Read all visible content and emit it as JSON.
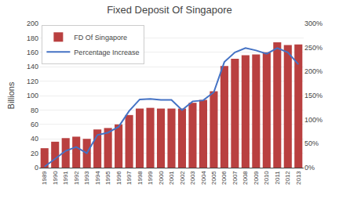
{
  "chart_data": {
    "type": "bar",
    "title": "Fixed Deposit Of Singapore",
    "ylabel": "Billions",
    "x": [
      1989,
      1990,
      1991,
      1992,
      1993,
      1994,
      1995,
      1996,
      1997,
      1998,
      1999,
      2000,
      2001,
      2002,
      2003,
      2004,
      2005,
      2006,
      2007,
      2008,
      2009,
      2010,
      2011,
      2012,
      2013
    ],
    "xlim": [
      1988.5,
      2013.5
    ],
    "xticks": [
      1989,
      1990,
      1991,
      1992,
      1993,
      1994,
      1995,
      1996,
      1997,
      1998,
      1999,
      2000,
      2001,
      2002,
      2003,
      2004,
      2005,
      2006,
      2007,
      2008,
      2009,
      2010,
      2011,
      2012,
      2013
    ],
    "series": [
      {
        "name": "FD Of Singapore",
        "type": "bar",
        "color": "#b94040",
        "values": [
          27,
          36,
          41,
          43,
          40,
          53,
          55,
          60,
          73,
          82,
          83,
          82,
          82,
          82,
          90,
          94,
          106,
          141,
          151,
          156,
          157,
          160,
          174,
          170,
          171
        ]
      },
      {
        "name": "Percentage Increase",
        "type": "line",
        "axis": "y2",
        "color": "#4472c4",
        "values": [
          2,
          18,
          35,
          43,
          30,
          68,
          73,
          85,
          118,
          142,
          143,
          141,
          141,
          120,
          138,
          140,
          157,
          220,
          240,
          249,
          244,
          237,
          249,
          240,
          215
        ]
      }
    ],
    "ylim": [
      0,
      200
    ],
    "yticks": [
      0,
      20,
      40,
      60,
      80,
      100,
      120,
      140,
      160,
      180,
      200
    ],
    "y2lim": [
      0,
      300
    ],
    "y2ticks": [
      {
        "value": 0,
        "label": "0%"
      },
      {
        "value": 50,
        "label": "50%"
      },
      {
        "value": 100,
        "label": "100%"
      },
      {
        "value": 150,
        "label": "150%"
      },
      {
        "value": 200,
        "label": "200%"
      },
      {
        "value": 250,
        "label": "250%"
      },
      {
        "value": 300,
        "label": "300%"
      }
    ],
    "grid": true,
    "legend": "upper left"
  }
}
